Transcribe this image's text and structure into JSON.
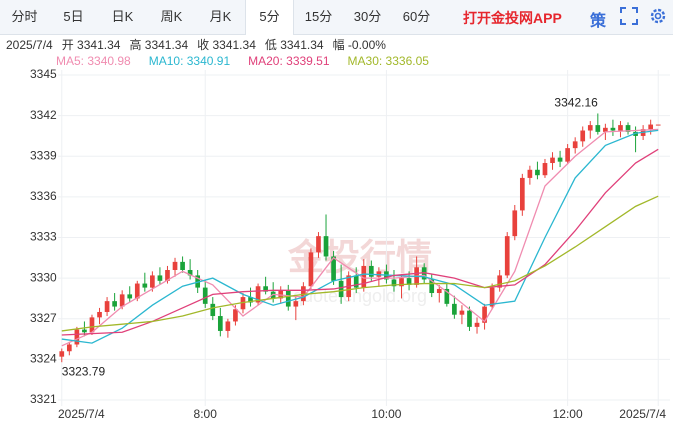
{
  "tabs": [
    "分时",
    "5日",
    "日K",
    "周K",
    "月K",
    "5分",
    "15分",
    "30分",
    "60分"
  ],
  "selected_tab": 5,
  "app_link": "打开金投网APP",
  "strategy": "策",
  "info": [
    "2025/7/4",
    "开 3341.34",
    "高 3341.34",
    "收 3341.34",
    "低 3341.34",
    "幅 -0.00%"
  ],
  "watermark": [
    "金投行情",
    "quote.cngold.org"
  ],
  "chart_data": {
    "type": "candlestick",
    "up_color": "#e8413c",
    "down_color": "#1aa33a",
    "grid": true,
    "ylim": [
      3321,
      3345
    ],
    "yticks": [
      3321,
      3324,
      3327,
      3330,
      3333,
      3336,
      3339,
      3342,
      3345
    ],
    "xlim": [
      -0.5,
      79.5
    ],
    "xticks": [
      {
        "value": 0,
        "label": "2025/7/4"
      },
      {
        "value": 19,
        "label": "8:00"
      },
      {
        "value": 43,
        "label": "10:00"
      },
      {
        "value": 67,
        "label": "12:00"
      },
      {
        "value": 79,
        "label": "2025/7/4"
      }
    ],
    "candles": [
      [
        3324.2,
        3324.8,
        3323.79,
        3324.6
      ],
      [
        3324.6,
        3325.3,
        3324.3,
        3325.1
      ],
      [
        3325.1,
        3326.4,
        3324.9,
        3326.2
      ],
      [
        3326.2,
        3326.8,
        3325.7,
        3326.0
      ],
      [
        3326.0,
        3327.3,
        3325.8,
        3327.1
      ],
      [
        3327.1,
        3327.8,
        3326.6,
        3327.5
      ],
      [
        3327.5,
        3328.6,
        3327.2,
        3328.3
      ],
      [
        3328.3,
        3328.9,
        3327.6,
        3327.9
      ],
      [
        3327.9,
        3329.1,
        3327.7,
        3328.8
      ],
      [
        3328.8,
        3329.4,
        3328.2,
        3328.5
      ],
      [
        3328.5,
        3329.8,
        3328.3,
        3329.6
      ],
      [
        3329.6,
        3330.4,
        3329.0,
        3329.3
      ],
      [
        3329.3,
        3330.5,
        3329.0,
        3330.2
      ],
      [
        3330.2,
        3330.8,
        3329.5,
        3329.8
      ],
      [
        3329.8,
        3330.9,
        3329.6,
        3330.6
      ],
      [
        3330.6,
        3331.5,
        3330.1,
        3331.2
      ],
      [
        3331.2,
        3331.6,
        3330.4,
        3330.6
      ],
      [
        3330.6,
        3331.4,
        3329.9,
        3330.2
      ],
      [
        3330.2,
        3330.6,
        3328.9,
        3329.3
      ],
      [
        3329.3,
        3329.9,
        3327.8,
        3328.1
      ],
      [
        3328.1,
        3328.6,
        3326.9,
        3327.2
      ],
      [
        3327.2,
        3327.8,
        3325.7,
        3326.1
      ],
      [
        3326.1,
        3327.0,
        3325.6,
        3326.8
      ],
      [
        3326.8,
        3328.0,
        3326.5,
        3327.7
      ],
      [
        3327.7,
        3328.9,
        3327.4,
        3328.6
      ],
      [
        3328.6,
        3329.3,
        3327.9,
        3328.2
      ],
      [
        3328.2,
        3329.6,
        3328.0,
        3329.4
      ],
      [
        3329.4,
        3330.1,
        3328.8,
        3329.0
      ],
      [
        3329.0,
        3329.7,
        3328.2,
        3328.5
      ],
      [
        3328.5,
        3329.4,
        3328.1,
        3329.1
      ],
      [
        3329.1,
        3329.5,
        3327.6,
        3327.9
      ],
      [
        3327.9,
        3328.6,
        3326.9,
        3328.3
      ],
      [
        3328.3,
        3329.7,
        3328.0,
        3329.4
      ],
      [
        3329.4,
        3332.2,
        3329.2,
        3331.9
      ],
      [
        3331.9,
        3333.4,
        3331.5,
        3333.1
      ],
      [
        3333.1,
        3334.7,
        3331.3,
        3331.6
      ],
      [
        3331.6,
        3332.0,
        3329.5,
        3329.8
      ],
      [
        3329.8,
        3331.0,
        3328.1,
        3328.6
      ],
      [
        3328.6,
        3330.5,
        3328.3,
        3330.2
      ],
      [
        3330.2,
        3330.8,
        3328.9,
        3329.3
      ],
      [
        3329.3,
        3331.4,
        3329.0,
        3330.9
      ],
      [
        3330.9,
        3331.3,
        3329.8,
        3330.1
      ],
      [
        3330.1,
        3330.8,
        3329.4,
        3330.5
      ],
      [
        3330.5,
        3331.0,
        3329.6,
        3329.9
      ],
      [
        3329.9,
        3330.6,
        3329.0,
        3329.4
      ],
      [
        3329.4,
        3330.3,
        3328.5,
        3330.0
      ],
      [
        3330.0,
        3330.5,
        3329.1,
        3329.5
      ],
      [
        3329.5,
        3331.6,
        3329.3,
        3330.8
      ],
      [
        3330.8,
        3331.1,
        3329.6,
        3329.9
      ],
      [
        3329.9,
        3330.3,
        3328.6,
        3328.9
      ],
      [
        3328.9,
        3329.5,
        3328.2,
        3329.2
      ],
      [
        3329.2,
        3329.6,
        3327.9,
        3328.1
      ],
      [
        3328.1,
        3328.7,
        3327.0,
        3327.3
      ],
      [
        3327.3,
        3328.0,
        3326.6,
        3327.6
      ],
      [
        3327.6,
        3327.9,
        3326.1,
        3326.4
      ],
      [
        3326.4,
        3327.1,
        3325.9,
        3326.7
      ],
      [
        3326.7,
        3328.1,
        3326.2,
        3327.9
      ],
      [
        3327.9,
        3329.6,
        3327.7,
        3329.3
      ],
      [
        3329.3,
        3330.6,
        3329.0,
        3330.2
      ],
      [
        3330.2,
        3333.4,
        3330.0,
        3333.1
      ],
      [
        3333.1,
        3335.4,
        3332.8,
        3335.0
      ],
      [
        3335.0,
        3337.7,
        3334.6,
        3337.4
      ],
      [
        3337.4,
        3338.3,
        3336.9,
        3338.0
      ],
      [
        3338.0,
        3338.6,
        3337.3,
        3337.6
      ],
      [
        3337.6,
        3338.8,
        3337.4,
        3338.5
      ],
      [
        3338.5,
        3339.3,
        3338.0,
        3338.9
      ],
      [
        3338.9,
        3339.4,
        3338.2,
        3338.6
      ],
      [
        3338.6,
        3339.9,
        3338.4,
        3339.6
      ],
      [
        3339.6,
        3340.4,
        3339.2,
        3340.1
      ],
      [
        3340.1,
        3341.2,
        3339.7,
        3340.9
      ],
      [
        3340.9,
        3341.6,
        3340.3,
        3341.3
      ],
      [
        3341.3,
        3342.16,
        3340.6,
        3340.8
      ],
      [
        3340.8,
        3341.4,
        3340.2,
        3341.1
      ],
      [
        3341.1,
        3341.7,
        3340.5,
        3340.9
      ],
      [
        3340.9,
        3341.6,
        3340.4,
        3341.3
      ],
      [
        3341.3,
        3341.5,
        3340.6,
        3340.8
      ],
      [
        3340.8,
        3341.2,
        3339.3,
        3340.5
      ],
      [
        3340.5,
        3341.3,
        3340.2,
        3341.0
      ],
      [
        3341.0,
        3341.7,
        3340.6,
        3341.34
      ],
      [
        3341.34,
        3341.34,
        3341.34,
        3341.34
      ]
    ],
    "series": [
      {
        "name": "MA5: 3340.98",
        "color": "#f08cb0",
        "x": [
          0,
          4,
          8,
          12,
          16,
          20,
          24,
          28,
          32,
          36,
          40,
          44,
          48,
          52,
          56,
          60,
          64,
          68,
          72,
          76,
          79
        ],
        "values": [
          3325.0,
          3326.0,
          3327.9,
          3329.2,
          3330.5,
          3329.5,
          3327.2,
          3328.8,
          3328.6,
          3331.5,
          3330.0,
          3330.0,
          3330.2,
          3328.6,
          3326.8,
          3330.5,
          3336.8,
          3339.0,
          3340.8,
          3340.9,
          3340.98
        ]
      },
      {
        "name": "MA10: 3340.91",
        "color": "#2bb7d0",
        "x": [
          0,
          4,
          8,
          12,
          16,
          20,
          24,
          28,
          32,
          36,
          40,
          44,
          48,
          52,
          56,
          60,
          64,
          68,
          72,
          76,
          79
        ],
        "values": [
          3325.5,
          3325.2,
          3326.3,
          3328.0,
          3329.4,
          3330.0,
          3328.8,
          3328.0,
          3328.6,
          3329.8,
          3330.3,
          3330.2,
          3330.1,
          3329.5,
          3328.0,
          3328.3,
          3333.0,
          3337.4,
          3339.8,
          3340.7,
          3340.91
        ]
      },
      {
        "name": "MA20: 3339.51",
        "color": "#e0407a",
        "x": [
          0,
          4,
          8,
          12,
          16,
          20,
          24,
          28,
          32,
          36,
          40,
          44,
          48,
          52,
          56,
          60,
          64,
          68,
          72,
          76,
          79
        ],
        "values": [
          3325.8,
          3325.9,
          3326.0,
          3326.8,
          3327.8,
          3328.8,
          3329.0,
          3329.1,
          3329.1,
          3329.2,
          3329.6,
          3330.2,
          3330.4,
          3330.0,
          3329.3,
          3329.5,
          3331.0,
          3333.5,
          3336.3,
          3338.5,
          3339.51
        ]
      },
      {
        "name": "MA30: 3336.05",
        "color": "#a2b82a",
        "x": [
          0,
          4,
          8,
          12,
          16,
          20,
          24,
          28,
          32,
          36,
          40,
          44,
          48,
          52,
          56,
          60,
          64,
          68,
          72,
          76,
          79
        ],
        "values": [
          3326.1,
          3326.4,
          3326.6,
          3326.8,
          3327.2,
          3327.8,
          3328.2,
          3328.5,
          3328.8,
          3329.0,
          3329.3,
          3329.5,
          3329.6,
          3329.6,
          3329.3,
          3329.8,
          3330.9,
          3332.3,
          3333.8,
          3335.3,
          3336.05
        ]
      }
    ],
    "annotations": [
      {
        "text": "3342.16",
        "at": "high"
      },
      {
        "text": "3323.79",
        "at": "low"
      }
    ]
  }
}
